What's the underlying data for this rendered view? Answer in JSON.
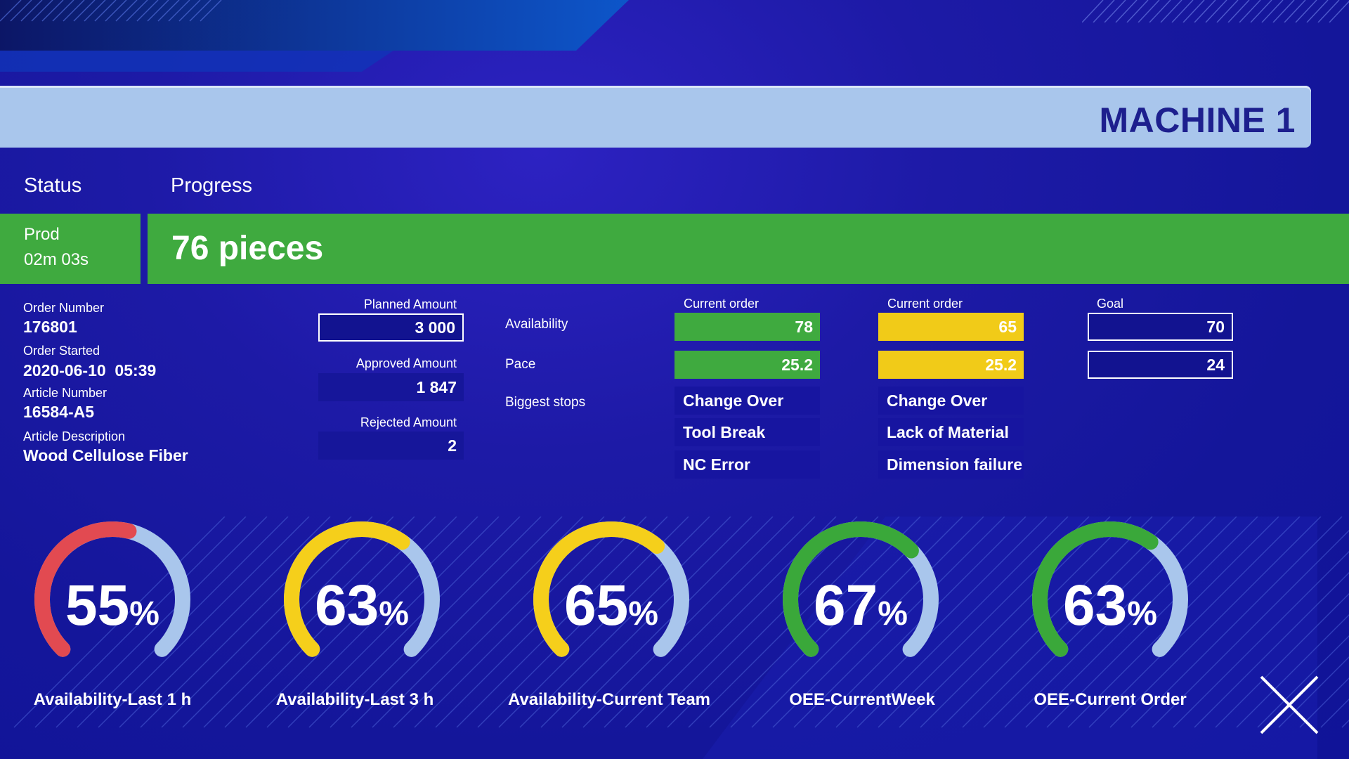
{
  "header": {
    "title": "MACHINE 1"
  },
  "tabs": {
    "status_label": "Status",
    "progress_label": "Progress"
  },
  "status": {
    "state": "Prod",
    "time": "02m 03s"
  },
  "progress": {
    "text": "76 pieces"
  },
  "order": {
    "number_label": "Order Number",
    "number": "176801",
    "started_label": "Order Started",
    "started": "2020-06-10  05:39",
    "article_number_label": "Article Number",
    "article_number": "16584-A5",
    "article_description_label": "Article Description",
    "article_description": "Wood Cellulose Fiber"
  },
  "amounts": {
    "planned_label": "Planned Amount",
    "planned": "3 000",
    "approved_label": "Approved Amount",
    "approved": "1 847",
    "rejected_label": "Rejected Amount",
    "rejected": "2"
  },
  "metrics": {
    "availability_label": "Availability",
    "pace_label": "Pace",
    "stops_label": "Biggest stops",
    "columns": [
      {
        "header": "Current order",
        "availability": "78",
        "pace": "25.2",
        "stops": [
          "Change Over",
          "Tool Break",
          "NC Error"
        ]
      },
      {
        "header": "Current order",
        "availability": "65",
        "pace": "25.2",
        "stops": [
          "Change Over",
          "Lack of Material",
          "Dimension failure"
        ]
      }
    ],
    "goal": {
      "header": "Goal",
      "availability": "70",
      "pace": "24"
    }
  },
  "gauges": [
    {
      "value": "55",
      "unit": "%",
      "label": "Availability-Last 1 h",
      "fraction": 0.55,
      "color": "#e24a51"
    },
    {
      "value": "63",
      "unit": "%",
      "label": "Availability-Last 3 h",
      "fraction": 0.63,
      "color": "#f5cf1b"
    },
    {
      "value": "65",
      "unit": "%",
      "label": "Availability-Current Team",
      "fraction": 0.65,
      "color": "#f5cf1b"
    },
    {
      "value": "67",
      "unit": "%",
      "label": "OEE-CurrentWeek",
      "fraction": 0.67,
      "color": "#3aa83a"
    },
    {
      "value": "63",
      "unit": "%",
      "label": "OEE-Current Order",
      "fraction": 0.63,
      "color": "#3aa83a"
    }
  ],
  "colors": {
    "track": "#a9c6ec",
    "green": "#3faa3f",
    "yellow": "#f1cb18",
    "header_bg": "#a9c6ec"
  },
  "icons": {
    "close": "close-icon"
  }
}
